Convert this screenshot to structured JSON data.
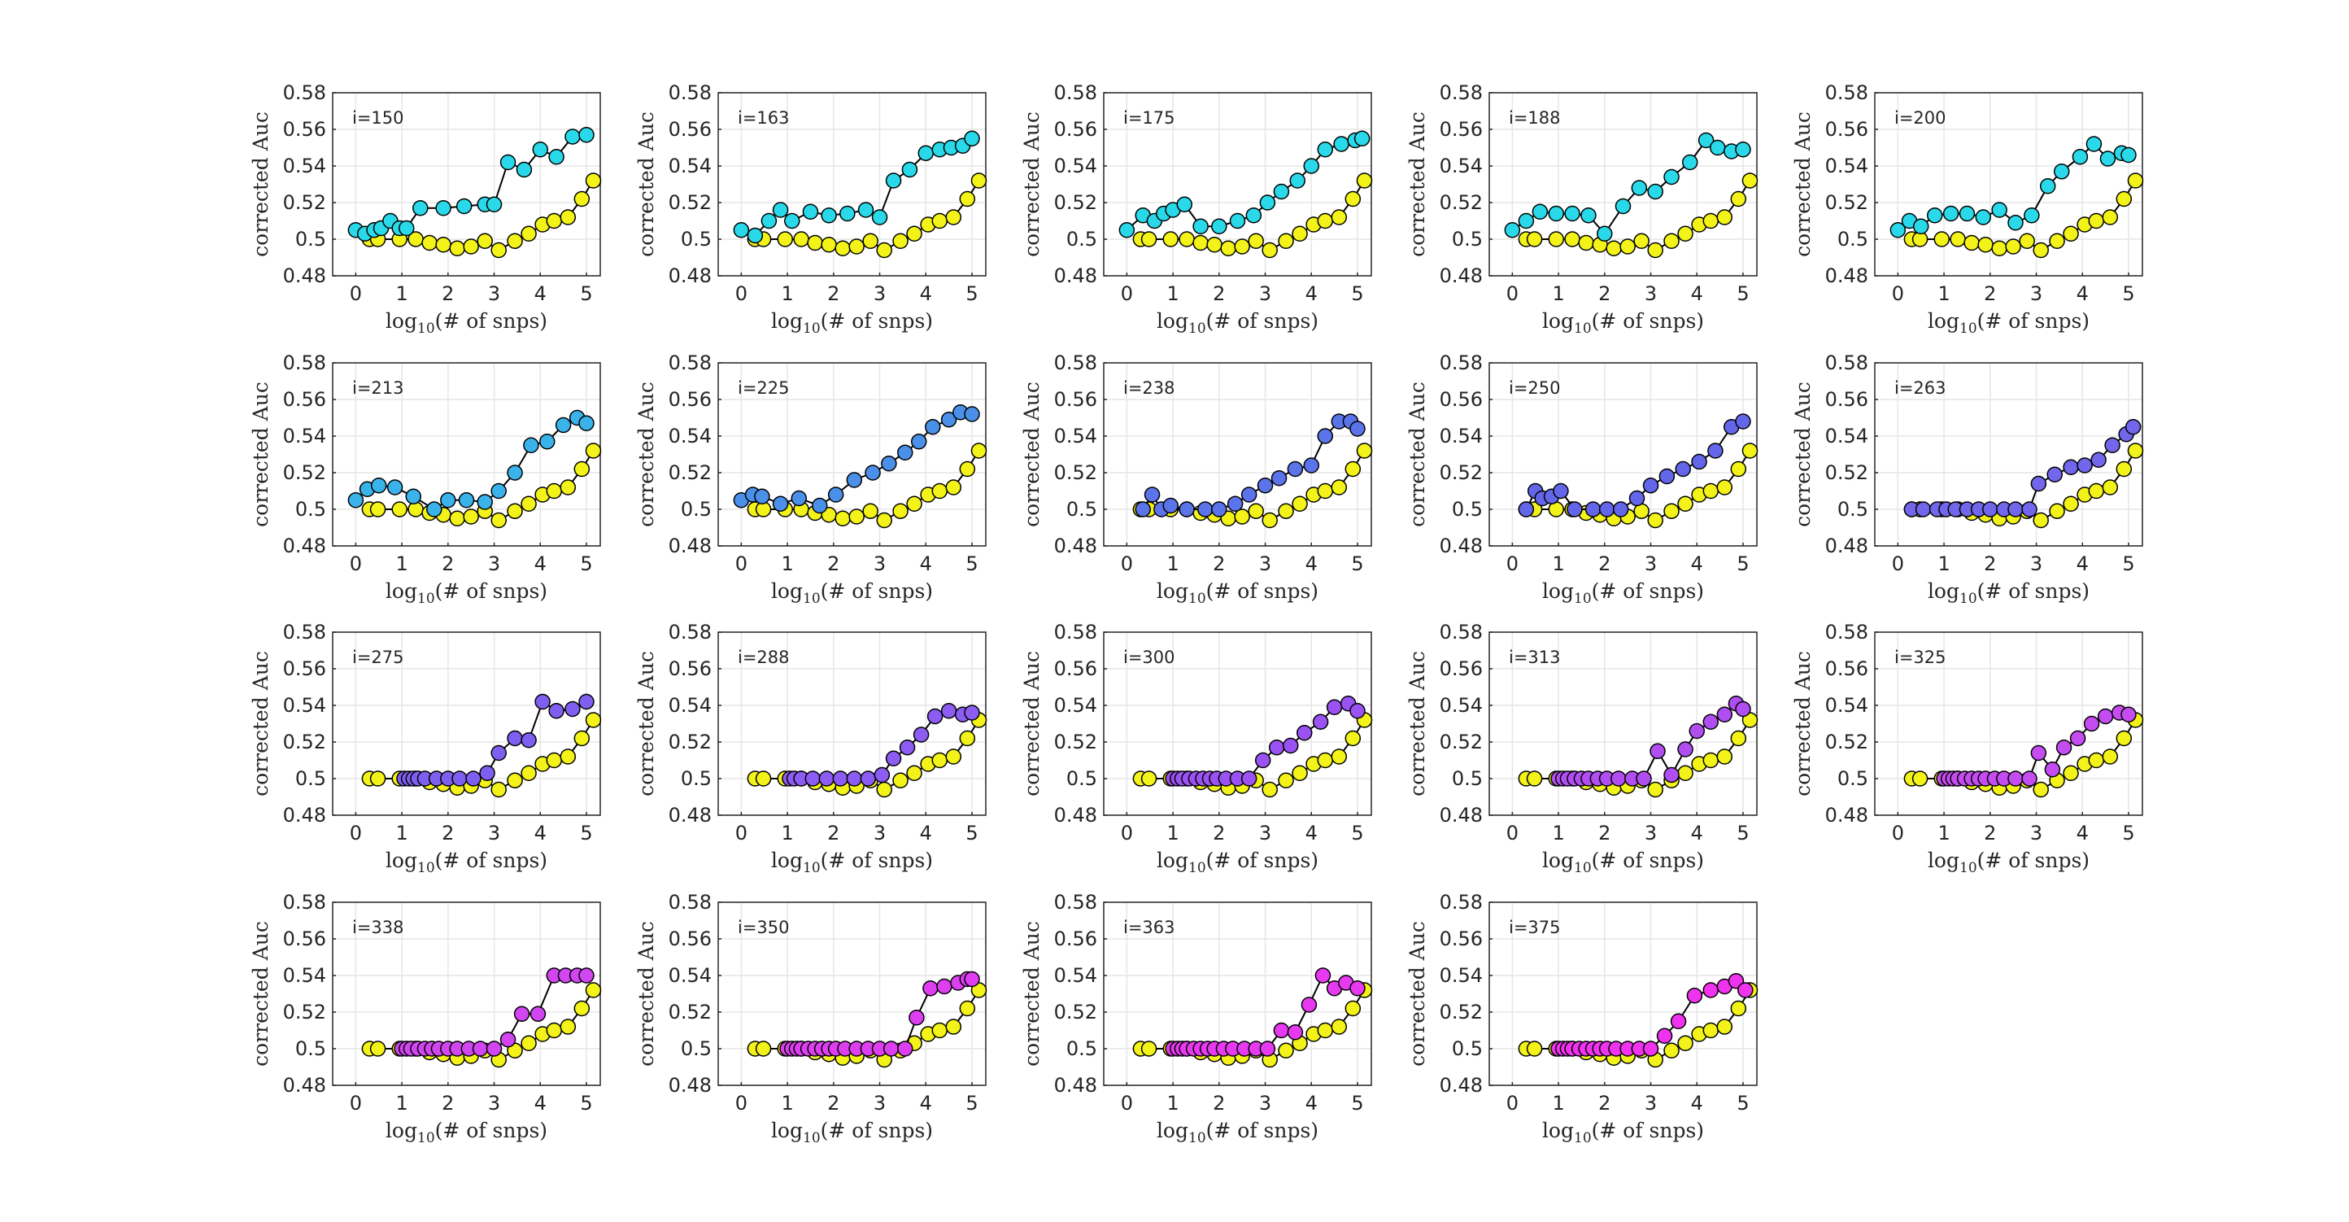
{
  "figure": {
    "xlabel": "log10(# of snps)",
    "ylabel": "corrected Auc",
    "xlim": [
      -0.5,
      5.3
    ],
    "ylim": [
      0.48,
      0.58
    ],
    "xticks": [
      "0",
      "1",
      "2",
      "3",
      "4",
      "5"
    ],
    "yticks": [
      "0.48",
      "0.5",
      "0.52",
      "0.54",
      "0.56",
      "0.58"
    ],
    "grid": true,
    "baseline_color": "#f3f319",
    "colors": {
      "axis": "#262626",
      "grid": "#e6e6e6",
      "line": "#000000"
    }
  },
  "chart_data": {
    "type": "line",
    "layout": "4 rows x 5 columns of small-multiple panels (19 used)",
    "baseline_series": {
      "name": "baseline",
      "x": [
        0.3,
        0.48,
        0.95,
        1.3,
        1.6,
        1.9,
        2.2,
        2.5,
        2.8,
        3.1,
        3.45,
        3.75,
        4.05,
        4.3,
        4.6,
        4.9,
        5.15
      ],
      "y": [
        0.5,
        0.5,
        0.5,
        0.5,
        0.498,
        0.497,
        0.495,
        0.496,
        0.499,
        0.494,
        0.499,
        0.503,
        0.508,
        0.51,
        0.512,
        0.522,
        0.532
      ]
    },
    "panels": [
      {
        "label": "i=150",
        "color": "#29d9e9",
        "x": [
          0.0,
          0.2,
          0.4,
          0.55,
          0.75,
          0.95,
          1.1,
          1.4,
          1.9,
          2.35,
          2.8,
          3.0,
          3.3,
          3.65,
          4.0,
          4.35,
          4.7,
          5.0
        ],
        "y": [
          0.505,
          0.503,
          0.505,
          0.506,
          0.51,
          0.506,
          0.506,
          0.517,
          0.517,
          0.518,
          0.519,
          0.519,
          0.542,
          0.538,
          0.549,
          0.545,
          0.556,
          0.557
        ]
      },
      {
        "label": "i=163",
        "color": "#29d9e9",
        "x": [
          0.0,
          0.3,
          0.6,
          0.85,
          1.1,
          1.5,
          1.9,
          2.3,
          2.7,
          3.0,
          3.3,
          3.65,
          4.0,
          4.3,
          4.55,
          4.8,
          5.0
        ],
        "y": [
          0.505,
          0.502,
          0.51,
          0.516,
          0.51,
          0.515,
          0.513,
          0.514,
          0.516,
          0.512,
          0.532,
          0.538,
          0.547,
          0.549,
          0.55,
          0.551,
          0.555
        ]
      },
      {
        "label": "i=175",
        "color": "#29d9e9",
        "x": [
          0.0,
          0.35,
          0.6,
          0.8,
          1.0,
          1.25,
          1.6,
          2.0,
          2.4,
          2.75,
          3.05,
          3.35,
          3.7,
          4.0,
          4.3,
          4.65,
          4.95,
          5.1
        ],
        "y": [
          0.505,
          0.513,
          0.51,
          0.514,
          0.516,
          0.519,
          0.507,
          0.507,
          0.51,
          0.513,
          0.52,
          0.526,
          0.532,
          0.54,
          0.549,
          0.552,
          0.554,
          0.555
        ]
      },
      {
        "label": "i=188",
        "color": "#29d9e9",
        "x": [
          0.0,
          0.3,
          0.6,
          0.95,
          1.3,
          1.65,
          2.0,
          2.4,
          2.75,
          3.1,
          3.45,
          3.85,
          4.2,
          4.45,
          4.75,
          5.0
        ],
        "y": [
          0.505,
          0.51,
          0.515,
          0.514,
          0.514,
          0.513,
          0.503,
          0.518,
          0.528,
          0.526,
          0.534,
          0.542,
          0.554,
          0.55,
          0.548,
          0.549
        ]
      },
      {
        "label": "i=200",
        "color": "#29d9e9",
        "x": [
          0.0,
          0.25,
          0.5,
          0.8,
          1.15,
          1.5,
          1.85,
          2.2,
          2.55,
          2.9,
          3.25,
          3.55,
          3.95,
          4.25,
          4.55,
          4.85,
          5.0
        ],
        "y": [
          0.505,
          0.51,
          0.507,
          0.513,
          0.514,
          0.514,
          0.512,
          0.516,
          0.509,
          0.513,
          0.529,
          0.537,
          0.545,
          0.552,
          0.544,
          0.547,
          0.546
        ]
      },
      {
        "label": "i=213",
        "color": "#3ab3ea",
        "x": [
          0.0,
          0.25,
          0.5,
          0.85,
          1.25,
          1.7,
          2.0,
          2.4,
          2.8,
          3.1,
          3.45,
          3.8,
          4.15,
          4.5,
          4.8,
          5.0
        ],
        "y": [
          0.505,
          0.511,
          0.513,
          0.512,
          0.507,
          0.5,
          0.505,
          0.505,
          0.504,
          0.51,
          0.52,
          0.535,
          0.537,
          0.546,
          0.55,
          0.547
        ]
      },
      {
        "label": "i=225",
        "color": "#4a8fe8",
        "x": [
          0.0,
          0.25,
          0.45,
          0.85,
          1.25,
          1.7,
          2.05,
          2.45,
          2.85,
          3.2,
          3.55,
          3.85,
          4.15,
          4.5,
          4.75,
          5.0
        ],
        "y": [
          0.505,
          0.508,
          0.507,
          0.503,
          0.506,
          0.502,
          0.508,
          0.516,
          0.52,
          0.525,
          0.531,
          0.537,
          0.545,
          0.549,
          0.553,
          0.552
        ]
      },
      {
        "label": "i=238",
        "color": "#5c74ea",
        "x": [
          0.35,
          0.55,
          0.75,
          0.95,
          1.3,
          1.7,
          2.0,
          2.35,
          2.65,
          3.0,
          3.3,
          3.65,
          4.0,
          4.3,
          4.6,
          4.85,
          5.0
        ],
        "y": [
          0.5,
          0.508,
          0.5,
          0.502,
          0.5,
          0.5,
          0.5,
          0.503,
          0.508,
          0.513,
          0.517,
          0.522,
          0.524,
          0.54,
          0.548,
          0.548,
          0.544
        ]
      },
      {
        "label": "i=250",
        "color": "#6466ea",
        "x": [
          0.3,
          0.5,
          0.65,
          0.85,
          1.05,
          1.35,
          1.75,
          2.05,
          2.35,
          2.7,
          3.0,
          3.35,
          3.7,
          4.05,
          4.4,
          4.75,
          5.0
        ],
        "y": [
          0.5,
          0.51,
          0.506,
          0.507,
          0.51,
          0.5,
          0.5,
          0.5,
          0.5,
          0.506,
          0.513,
          0.518,
          0.522,
          0.526,
          0.532,
          0.545,
          0.548
        ]
      },
      {
        "label": "i=263",
        "color": "#7266ea",
        "x": [
          0.3,
          0.55,
          0.85,
          1.05,
          1.25,
          1.5,
          1.75,
          2.0,
          2.3,
          2.55,
          2.85,
          3.05,
          3.4,
          3.75,
          4.05,
          4.35,
          4.65,
          4.95,
          5.1
        ],
        "y": [
          0.5,
          0.5,
          0.5,
          0.5,
          0.5,
          0.5,
          0.5,
          0.5,
          0.5,
          0.5,
          0.5,
          0.514,
          0.519,
          0.523,
          0.524,
          0.527,
          0.535,
          0.541,
          0.545
        ]
      },
      {
        "label": "i=275",
        "color": "#7f5ff0",
        "x": [
          1.05,
          1.15,
          1.25,
          1.35,
          1.5,
          1.75,
          2.0,
          2.25,
          2.55,
          2.85,
          3.1,
          3.45,
          3.75,
          4.05,
          4.35,
          4.7,
          5.0
        ],
        "y": [
          0.5,
          0.5,
          0.5,
          0.5,
          0.5,
          0.5,
          0.5,
          0.5,
          0.5,
          0.503,
          0.514,
          0.522,
          0.521,
          0.542,
          0.537,
          0.538,
          0.542
        ]
      },
      {
        "label": "i=288",
        "color": "#8c5cf3",
        "x": [
          1.05,
          1.15,
          1.3,
          1.55,
          1.85,
          2.15,
          2.45,
          2.75,
          3.05,
          3.3,
          3.6,
          3.9,
          4.2,
          4.5,
          4.8,
          5.0
        ],
        "y": [
          0.5,
          0.5,
          0.5,
          0.5,
          0.5,
          0.5,
          0.5,
          0.5,
          0.502,
          0.511,
          0.517,
          0.524,
          0.534,
          0.537,
          0.535,
          0.536
        ]
      },
      {
        "label": "i=300",
        "color": "#9a52f3",
        "x": [
          1.0,
          1.1,
          1.2,
          1.35,
          1.5,
          1.65,
          1.8,
          1.95,
          2.15,
          2.4,
          2.65,
          2.95,
          3.25,
          3.55,
          3.85,
          4.2,
          4.5,
          4.8,
          5.0
        ],
        "y": [
          0.5,
          0.5,
          0.5,
          0.5,
          0.5,
          0.5,
          0.5,
          0.5,
          0.5,
          0.5,
          0.5,
          0.51,
          0.517,
          0.518,
          0.525,
          0.531,
          0.539,
          0.541,
          0.537
        ]
      },
      {
        "label": "i=313",
        "color": "#b04ef2",
        "x": [
          1.0,
          1.1,
          1.2,
          1.35,
          1.5,
          1.65,
          1.85,
          2.05,
          2.3,
          2.6,
          2.85,
          3.15,
          3.45,
          3.75,
          4.0,
          4.3,
          4.6,
          4.85,
          5.0
        ],
        "y": [
          0.5,
          0.5,
          0.5,
          0.5,
          0.5,
          0.5,
          0.5,
          0.5,
          0.5,
          0.5,
          0.5,
          0.515,
          0.502,
          0.516,
          0.526,
          0.531,
          0.535,
          0.541,
          0.538
        ]
      },
      {
        "label": "i=325",
        "color": "#c44cf0",
        "x": [
          1.0,
          1.1,
          1.2,
          1.3,
          1.45,
          1.6,
          1.75,
          1.9,
          2.1,
          2.3,
          2.55,
          2.85,
          3.05,
          3.35,
          3.6,
          3.9,
          4.2,
          4.5,
          4.8,
          5.0
        ],
        "y": [
          0.5,
          0.5,
          0.5,
          0.5,
          0.5,
          0.5,
          0.5,
          0.5,
          0.5,
          0.5,
          0.5,
          0.5,
          0.514,
          0.505,
          0.517,
          0.522,
          0.53,
          0.534,
          0.536,
          0.535
        ]
      },
      {
        "label": "i=338",
        "color": "#d146f0",
        "x": [
          1.0,
          1.1,
          1.2,
          1.35,
          1.5,
          1.65,
          1.8,
          2.0,
          2.2,
          2.45,
          2.7,
          3.0,
          3.3,
          3.6,
          3.95,
          4.3,
          4.55,
          4.8,
          5.0
        ],
        "y": [
          0.5,
          0.5,
          0.5,
          0.5,
          0.5,
          0.5,
          0.5,
          0.5,
          0.5,
          0.5,
          0.5,
          0.5,
          0.505,
          0.519,
          0.519,
          0.54,
          0.54,
          0.54,
          0.54
        ]
      },
      {
        "label": "i=350",
        "color": "#dd3ff0",
        "x": [
          1.0,
          1.1,
          1.2,
          1.3,
          1.45,
          1.6,
          1.75,
          1.9,
          2.05,
          2.25,
          2.5,
          2.75,
          3.0,
          3.25,
          3.55,
          3.8,
          4.1,
          4.4,
          4.7,
          4.9,
          5.0
        ],
        "y": [
          0.5,
          0.5,
          0.5,
          0.5,
          0.5,
          0.5,
          0.5,
          0.5,
          0.5,
          0.5,
          0.5,
          0.5,
          0.5,
          0.5,
          0.5,
          0.517,
          0.533,
          0.534,
          0.536,
          0.538,
          0.538
        ]
      },
      {
        "label": "i=363",
        "color": "#e639f0",
        "x": [
          1.0,
          1.1,
          1.2,
          1.3,
          1.45,
          1.6,
          1.75,
          1.9,
          2.1,
          2.3,
          2.55,
          2.8,
          3.05,
          3.35,
          3.65,
          3.95,
          4.25,
          4.5,
          4.75,
          5.0
        ],
        "y": [
          0.5,
          0.5,
          0.5,
          0.5,
          0.5,
          0.5,
          0.5,
          0.5,
          0.5,
          0.5,
          0.5,
          0.5,
          0.5,
          0.51,
          0.509,
          0.524,
          0.54,
          0.533,
          0.536,
          0.533
        ]
      },
      {
        "label": "i=375",
        "color": "#ef33ef",
        "x": [
          1.0,
          1.1,
          1.2,
          1.3,
          1.45,
          1.6,
          1.75,
          1.9,
          2.05,
          2.25,
          2.5,
          2.75,
          3.0,
          3.3,
          3.6,
          3.95,
          4.3,
          4.6,
          4.85,
          5.05
        ],
        "y": [
          0.5,
          0.5,
          0.5,
          0.5,
          0.5,
          0.5,
          0.5,
          0.5,
          0.5,
          0.5,
          0.5,
          0.5,
          0.5,
          0.507,
          0.515,
          0.529,
          0.532,
          0.534,
          0.537,
          0.532
        ]
      }
    ]
  }
}
